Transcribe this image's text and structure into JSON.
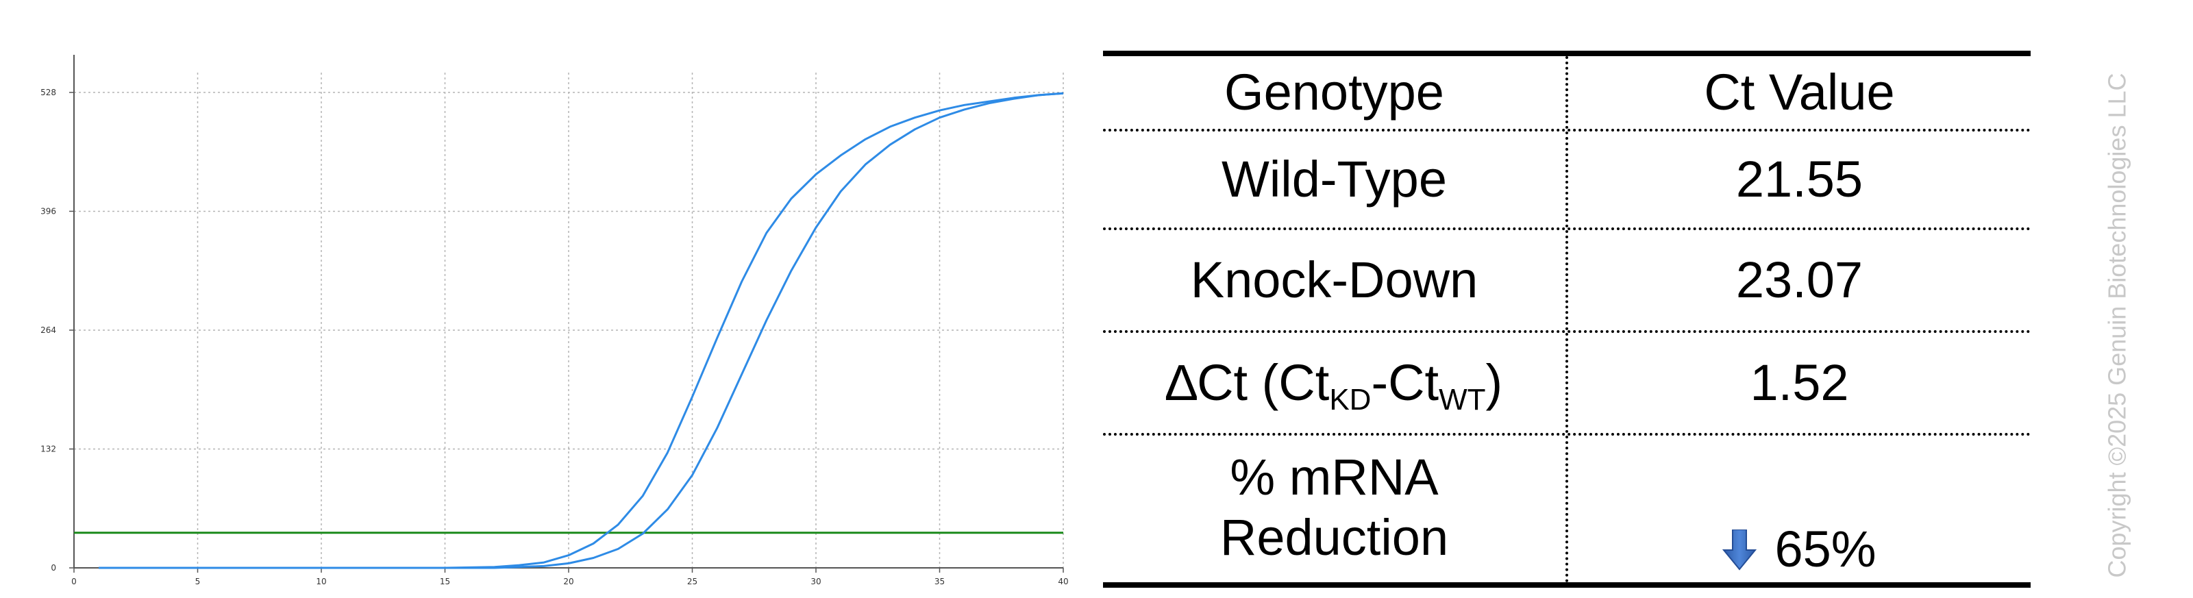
{
  "chart_data": {
    "type": "line",
    "title": "",
    "xlabel": "",
    "ylabel": "",
    "xlim": [
      0,
      40
    ],
    "ylim": [
      0,
      550
    ],
    "x_ticks": [
      0,
      5,
      10,
      15,
      20,
      25,
      30,
      35,
      40
    ],
    "y_ticks": [
      0,
      132,
      264,
      396,
      528
    ],
    "grid": true,
    "series": [
      {
        "color": "#2e8be6",
        "x": [
          1,
          5,
          10,
          15,
          17,
          18,
          19,
          20,
          21,
          22,
          23,
          24,
          25,
          26,
          27,
          28,
          29,
          30,
          31,
          32,
          33,
          34,
          35,
          36,
          37,
          38,
          39,
          40
        ],
        "y": [
          0,
          0,
          0,
          0,
          1,
          3,
          6,
          14,
          27,
          48,
          80,
          128,
          190,
          255,
          318,
          372,
          410,
          437,
          458,
          476,
          490,
          500,
          508,
          514,
          518,
          522,
          525,
          527
        ]
      },
      {
        "color": "#2e8be6",
        "x": [
          1,
          5,
          10,
          15,
          17,
          18,
          19,
          20,
          21,
          22,
          23,
          24,
          25,
          26,
          27,
          28,
          29,
          30,
          31,
          32,
          33,
          34,
          35,
          36,
          37,
          38,
          39,
          40
        ],
        "y": [
          0,
          0,
          0,
          0,
          0,
          1,
          2,
          5,
          11,
          21,
          38,
          65,
          103,
          155,
          215,
          275,
          330,
          378,
          418,
          448,
          470,
          487,
          500,
          509,
          516,
          521,
          525,
          527
        ]
      }
    ],
    "threshold": {
      "y": 39,
      "color": "#1a8a1a"
    }
  },
  "table": {
    "headers": [
      "Genotype",
      "Ct Value"
    ],
    "rows": [
      {
        "label": "Wild-Type",
        "value": "21.55"
      },
      {
        "label": "Knock-Down",
        "value": "23.07"
      },
      {
        "label": "∆Ct (Ct",
        "label_sub1": "KD",
        "label_mid": "-Ct",
        "label_sub2": "WT",
        "label_end": ")",
        "value": "1.52"
      },
      {
        "label_line1": "% mRNA",
        "label_line2": "Reduction",
        "value": "65%",
        "icon": "down-arrow-icon"
      }
    ]
  },
  "copyright": "Copyright ©2025 Genuin Biotechnologies LLC",
  "colors": {
    "arrow": "#3b6fc6",
    "curve": "#2e8be6",
    "threshold": "#1a8a1a"
  }
}
